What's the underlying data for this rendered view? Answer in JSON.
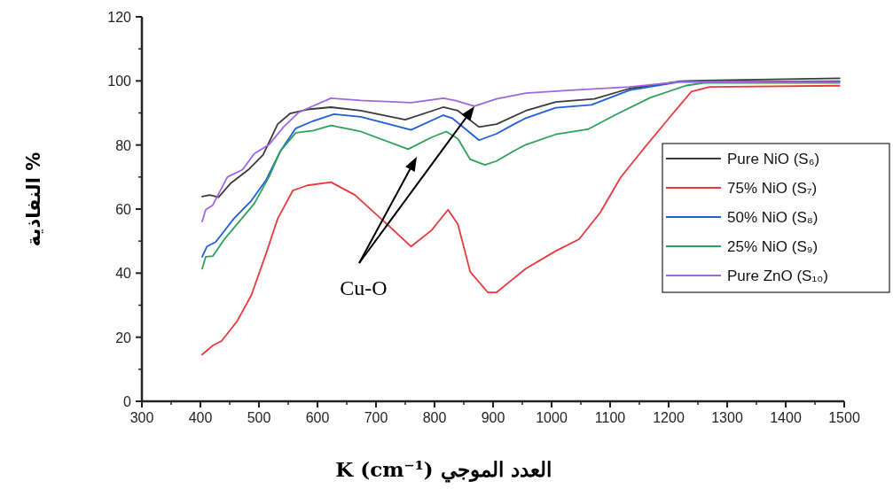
{
  "chart_data": {
    "type": "line",
    "xlabel": "K (cm⁻¹) العدد الموجي",
    "ylabel": "النفاذية %",
    "xlim": [
      300,
      1500
    ],
    "xticks": [
      300,
      400,
      500,
      600,
      700,
      800,
      900,
      1000,
      1100,
      1200,
      1300,
      1400,
      1500
    ],
    "ylim": [
      0,
      120
    ],
    "yticks": [
      0,
      20,
      40,
      60,
      80,
      100,
      120
    ],
    "grid": false,
    "legend": "right",
    "line_style": "solid",
    "marker": "none",
    "annotations": [
      "Cu-O"
    ],
    "series": [
      {
        "name": "Pure NiO (S₆)",
        "color": "#3a3a3a",
        "x": [
          403,
          416,
          431,
          452,
          482,
          507,
          532,
          553,
          583,
          623,
          674,
          750,
          815,
          840,
          876,
          906,
          956,
          1007,
          1073,
          1133,
          1219,
          1260,
          1492
        ],
        "values": [
          63.9,
          64.4,
          63.7,
          68.1,
          72.3,
          76.9,
          86.5,
          89.8,
          91.1,
          91.8,
          90.7,
          87.9,
          91.8,
          90.7,
          85.6,
          86.5,
          90.7,
          93.4,
          94.4,
          97.6,
          99.9,
          100.1,
          100.8
        ]
      },
      {
        "name": "75% NiO (S₇)",
        "color": "#e8383d",
        "x": [
          403,
          421,
          436,
          462,
          487,
          512,
          532,
          558,
          583,
          623,
          664,
          714,
          760,
          795,
          823,
          840,
          861,
          891,
          906,
          931,
          956,
          1007,
          1047,
          1083,
          1118,
          1159,
          1209,
          1239,
          1270,
          1492
        ],
        "values": [
          14.6,
          17.4,
          18.8,
          24.8,
          33.1,
          46,
          57,
          65.8,
          67.4,
          68.4,
          64.4,
          56.1,
          48.3,
          53.4,
          59.8,
          55.2,
          40.4,
          34,
          34,
          37.7,
          41.4,
          46.9,
          50.6,
          58.9,
          69.9,
          79.2,
          90.2,
          96.7,
          98.1,
          98.5
        ]
      },
      {
        "name": "50% NiO (S₈)",
        "color": "#1f5fd6",
        "x": [
          403,
          411,
          426,
          457,
          487,
          512,
          537,
          563,
          593,
          628,
          674,
          760,
          815,
          830,
          876,
          906,
          936,
          956,
          1007,
          1068,
          1133,
          1219,
          1492
        ],
        "values": [
          45.1,
          48.3,
          49.7,
          57,
          62.6,
          69,
          78.2,
          85.2,
          87.5,
          89.6,
          88.8,
          84.7,
          89.3,
          88.4,
          81.5,
          83.5,
          86.5,
          88.4,
          91.6,
          92.5,
          97.1,
          99.7,
          99.9
        ]
      },
      {
        "name": "25% NiO (S₉)",
        "color": "#2ea05a",
        "x": [
          403,
          409,
          421,
          441,
          492,
          517,
          537,
          563,
          593,
          623,
          674,
          755,
          795,
          820,
          840,
          861,
          886,
          906,
          936,
          956,
          1007,
          1062,
          1108,
          1169,
          1229,
          1260,
          1492
        ],
        "values": [
          41.4,
          45.1,
          45.3,
          50.6,
          61.7,
          70,
          78.2,
          83.8,
          84.5,
          86.1,
          84.2,
          78.7,
          82.4,
          84.2,
          81.9,
          75.5,
          73.8,
          75,
          78.2,
          80.1,
          83.3,
          84.9,
          89.3,
          94.8,
          98.5,
          99.4,
          99.4
        ]
      },
      {
        "name": "Pure ZnO (S₁₀)",
        "color": "#a066e0",
        "x": [
          403,
          409,
          421,
          446,
          472,
          492,
          517,
          542,
          568,
          593,
          623,
          674,
          760,
          815,
          835,
          868,
          906,
          956,
          1032,
          1133,
          1219,
          1492
        ],
        "values": [
          56.1,
          59.8,
          61.2,
          70,
          72.3,
          77.3,
          80.1,
          85.6,
          90.2,
          92.2,
          94.6,
          93.9,
          93.2,
          94.6,
          93.9,
          92.1,
          94.4,
          96.2,
          97.1,
          98.1,
          99.7,
          99.6
        ]
      }
    ]
  }
}
